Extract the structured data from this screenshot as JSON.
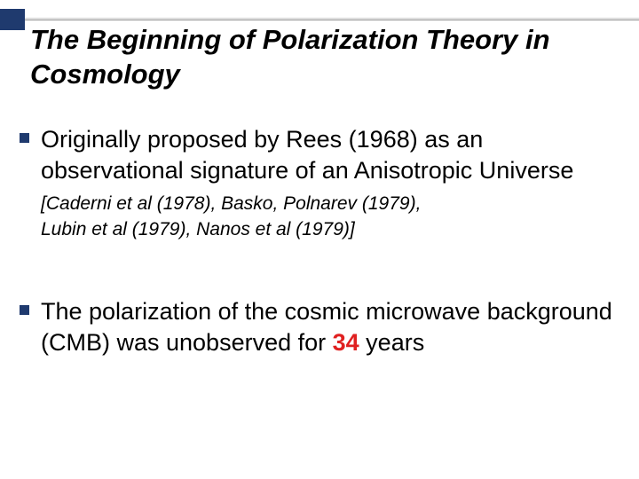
{
  "decor": {
    "accent_color": "#1f3a6e",
    "line_color": "#888888"
  },
  "title": "The Beginning of Polarization Theory in Cosmology",
  "bullets": [
    {
      "main_before_refs": "Originally proposed by Rees (1968) as an observational signature of an Anisotropic Universe ",
      "ref_bracket_open": "[",
      "ref_inline": "Caderni et al (1978), Basko, Polnarev (1979),",
      "ref_cont": "Lubin et al (1979), Nanos et al (1979)]",
      "has_refs": true
    },
    {
      "main_before": "The polarization of the cosmic microwave background (CMB) was unobserved for ",
      "em_number": "34",
      "main_after": " years",
      "has_refs": false
    }
  ],
  "typography": {
    "title_fontsize": 31,
    "body_fontsize": 27,
    "ref_fontsize": 21,
    "title_weight": "bold",
    "title_style": "italic",
    "ref_style": "italic",
    "em_color": "#e02020"
  }
}
